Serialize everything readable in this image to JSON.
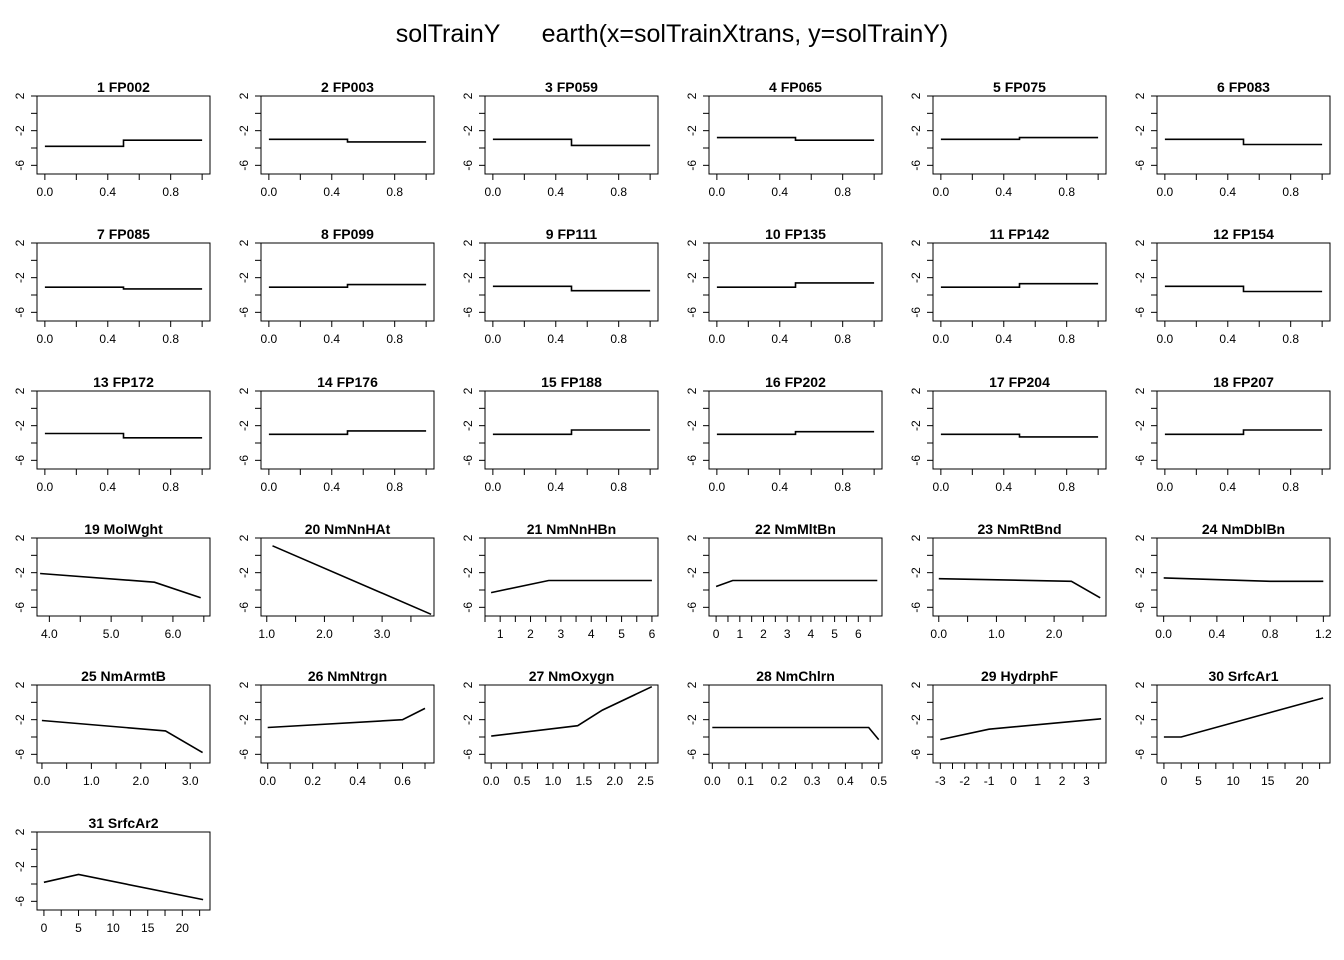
{
  "title": "solTrainY      earth(x=solTrainXtrans, y=solTrainY)",
  "chart_data": [
    {
      "type": "line",
      "title": "1  FP002",
      "ylim": [
        -7,
        2
      ],
      "yticks": [
        "2",
        "-2",
        "-6"
      ],
      "xlim": [
        -0.05,
        1.05
      ],
      "xticks": [
        "0.0",
        "0.4",
        "0.8"
      ],
      "series": [
        {
          "x": [
            0,
            0.5,
            0.5,
            1
          ],
          "y": [
            -3.8,
            -3.8,
            -3.1,
            -3.1
          ]
        }
      ]
    },
    {
      "type": "line",
      "title": "2  FP003",
      "ylim": [
        -7,
        2
      ],
      "yticks": [
        "2",
        "-2",
        "-6"
      ],
      "xlim": [
        -0.05,
        1.05
      ],
      "xticks": [
        "0.0",
        "0.4",
        "0.8"
      ],
      "series": [
        {
          "x": [
            0,
            0.5,
            0.5,
            1
          ],
          "y": [
            -3.0,
            -3.0,
            -3.3,
            -3.3
          ]
        }
      ]
    },
    {
      "type": "line",
      "title": "3  FP059",
      "ylim": [
        -7,
        2
      ],
      "yticks": [
        "2",
        "-2",
        "-6"
      ],
      "xlim": [
        -0.05,
        1.05
      ],
      "xticks": [
        "0.0",
        "0.4",
        "0.8"
      ],
      "series": [
        {
          "x": [
            0,
            0.5,
            0.5,
            1
          ],
          "y": [
            -3.0,
            -3.0,
            -3.7,
            -3.7
          ]
        }
      ]
    },
    {
      "type": "line",
      "title": "4  FP065",
      "ylim": [
        -7,
        2
      ],
      "yticks": [
        "2",
        "-2",
        "-6"
      ],
      "xlim": [
        -0.05,
        1.05
      ],
      "xticks": [
        "0.0",
        "0.4",
        "0.8"
      ],
      "series": [
        {
          "x": [
            0,
            0.5,
            0.5,
            1
          ],
          "y": [
            -2.8,
            -2.8,
            -3.1,
            -3.1
          ]
        }
      ]
    },
    {
      "type": "line",
      "title": "5  FP075",
      "ylim": [
        -7,
        2
      ],
      "yticks": [
        "2",
        "-2",
        "-6"
      ],
      "xlim": [
        -0.05,
        1.05
      ],
      "xticks": [
        "0.0",
        "0.4",
        "0.8"
      ],
      "series": [
        {
          "x": [
            0,
            0.5,
            0.5,
            1
          ],
          "y": [
            -3.0,
            -3.0,
            -2.8,
            -2.8
          ]
        }
      ]
    },
    {
      "type": "line",
      "title": "6  FP083",
      "ylim": [
        -7,
        2
      ],
      "yticks": [
        "2",
        "-2",
        "-6"
      ],
      "xlim": [
        -0.05,
        1.05
      ],
      "xticks": [
        "0.0",
        "0.4",
        "0.8"
      ],
      "series": [
        {
          "x": [
            0,
            0.5,
            0.5,
            1
          ],
          "y": [
            -3.0,
            -3.0,
            -3.6,
            -3.6
          ]
        }
      ]
    },
    {
      "type": "line",
      "title": "7  FP085",
      "ylim": [
        -7,
        2
      ],
      "yticks": [
        "2",
        "-2",
        "-6"
      ],
      "xlim": [
        -0.05,
        1.05
      ],
      "xticks": [
        "0.0",
        "0.4",
        "0.8"
      ],
      "series": [
        {
          "x": [
            0,
            0.5,
            0.5,
            1
          ],
          "y": [
            -3.1,
            -3.1,
            -3.3,
            -3.3
          ]
        }
      ]
    },
    {
      "type": "line",
      "title": "8  FP099",
      "ylim": [
        -7,
        2
      ],
      "yticks": [
        "2",
        "-2",
        "-6"
      ],
      "xlim": [
        -0.05,
        1.05
      ],
      "xticks": [
        "0.0",
        "0.4",
        "0.8"
      ],
      "series": [
        {
          "x": [
            0,
            0.5,
            0.5,
            1
          ],
          "y": [
            -3.1,
            -3.1,
            -2.8,
            -2.8
          ]
        }
      ]
    },
    {
      "type": "line",
      "title": "9  FP111",
      "ylim": [
        -7,
        2
      ],
      "yticks": [
        "2",
        "-2",
        "-6"
      ],
      "xlim": [
        -0.05,
        1.05
      ],
      "xticks": [
        "0.0",
        "0.4",
        "0.8"
      ],
      "series": [
        {
          "x": [
            0,
            0.5,
            0.5,
            1
          ],
          "y": [
            -3.0,
            -3.0,
            -3.5,
            -3.5
          ]
        }
      ]
    },
    {
      "type": "line",
      "title": "10  FP135",
      "ylim": [
        -7,
        2
      ],
      "yticks": [
        "2",
        "-2",
        "-6"
      ],
      "xlim": [
        -0.05,
        1.05
      ],
      "xticks": [
        "0.0",
        "0.4",
        "0.8"
      ],
      "series": [
        {
          "x": [
            0,
            0.5,
            0.5,
            1
          ],
          "y": [
            -3.1,
            -3.1,
            -2.6,
            -2.6
          ]
        }
      ]
    },
    {
      "type": "line",
      "title": "11  FP142",
      "ylim": [
        -7,
        2
      ],
      "yticks": [
        "2",
        "-2",
        "-6"
      ],
      "xlim": [
        -0.05,
        1.05
      ],
      "xticks": [
        "0.0",
        "0.4",
        "0.8"
      ],
      "series": [
        {
          "x": [
            0,
            0.5,
            0.5,
            1
          ],
          "y": [
            -3.1,
            -3.1,
            -2.7,
            -2.7
          ]
        }
      ]
    },
    {
      "type": "line",
      "title": "12  FP154",
      "ylim": [
        -7,
        2
      ],
      "yticks": [
        "2",
        "-2",
        "-6"
      ],
      "xlim": [
        -0.05,
        1.05
      ],
      "xticks": [
        "0.0",
        "0.4",
        "0.8"
      ],
      "series": [
        {
          "x": [
            0,
            0.5,
            0.5,
            1
          ],
          "y": [
            -3.0,
            -3.0,
            -3.6,
            -3.6
          ]
        }
      ]
    },
    {
      "type": "line",
      "title": "13  FP172",
      "ylim": [
        -7,
        2
      ],
      "yticks": [
        "2",
        "-2",
        "-6"
      ],
      "xlim": [
        -0.05,
        1.05
      ],
      "xticks": [
        "0.0",
        "0.4",
        "0.8"
      ],
      "series": [
        {
          "x": [
            0,
            0.5,
            0.5,
            1
          ],
          "y": [
            -2.9,
            -2.9,
            -3.4,
            -3.4
          ]
        }
      ]
    },
    {
      "type": "line",
      "title": "14  FP176",
      "ylim": [
        -7,
        2
      ],
      "yticks": [
        "2",
        "-2",
        "-6"
      ],
      "xlim": [
        -0.05,
        1.05
      ],
      "xticks": [
        "0.0",
        "0.4",
        "0.8"
      ],
      "series": [
        {
          "x": [
            0,
            0.5,
            0.5,
            1
          ],
          "y": [
            -3.0,
            -3.0,
            -2.6,
            -2.6
          ]
        }
      ]
    },
    {
      "type": "line",
      "title": "15  FP188",
      "ylim": [
        -7,
        2
      ],
      "yticks": [
        "2",
        "-2",
        "-6"
      ],
      "xlim": [
        -0.05,
        1.05
      ],
      "xticks": [
        "0.0",
        "0.4",
        "0.8"
      ],
      "series": [
        {
          "x": [
            0,
            0.5,
            0.5,
            1
          ],
          "y": [
            -3.0,
            -3.0,
            -2.5,
            -2.5
          ]
        }
      ]
    },
    {
      "type": "line",
      "title": "16  FP202",
      "ylim": [
        -7,
        2
      ],
      "yticks": [
        "2",
        "-2",
        "-6"
      ],
      "xlim": [
        -0.05,
        1.05
      ],
      "xticks": [
        "0.0",
        "0.4",
        "0.8"
      ],
      "series": [
        {
          "x": [
            0,
            0.5,
            0.5,
            1
          ],
          "y": [
            -3.0,
            -3.0,
            -2.7,
            -2.7
          ]
        }
      ]
    },
    {
      "type": "line",
      "title": "17  FP204",
      "ylim": [
        -7,
        2
      ],
      "yticks": [
        "2",
        "-2",
        "-6"
      ],
      "xlim": [
        -0.05,
        1.05
      ],
      "xticks": [
        "0.0",
        "0.4",
        "0.8"
      ],
      "series": [
        {
          "x": [
            0,
            0.5,
            0.5,
            1
          ],
          "y": [
            -3.0,
            -3.0,
            -3.3,
            -3.3
          ]
        }
      ]
    },
    {
      "type": "line",
      "title": "18  FP207",
      "ylim": [
        -7,
        2
      ],
      "yticks": [
        "2",
        "-2",
        "-6"
      ],
      "xlim": [
        -0.05,
        1.05
      ],
      "xticks": [
        "0.0",
        "0.4",
        "0.8"
      ],
      "series": [
        {
          "x": [
            0,
            0.5,
            0.5,
            1
          ],
          "y": [
            -3.0,
            -3.0,
            -2.5,
            -2.5
          ]
        }
      ]
    },
    {
      "type": "line",
      "title": "19  MolWght",
      "ylim": [
        -7,
        2
      ],
      "yticks": [
        "2",
        "-2",
        "-6"
      ],
      "xlim": [
        3.8,
        6.6
      ],
      "xticks": [
        "4.0",
        "5.0",
        "6.0"
      ],
      "series": [
        {
          "x": [
            3.85,
            5.7,
            6.45
          ],
          "y": [
            -2.1,
            -3.1,
            -4.9
          ]
        }
      ]
    },
    {
      "type": "line",
      "title": "20  NmNnHAt",
      "ylim": [
        -7,
        2
      ],
      "yticks": [
        "2",
        "-2",
        "-6"
      ],
      "xlim": [
        0.9,
        3.9
      ],
      "xticks": [
        "1.0",
        "2.0",
        "3.0"
      ],
      "series": [
        {
          "x": [
            1.1,
            3.85
          ],
          "y": [
            1.1,
            -6.8
          ]
        }
      ]
    },
    {
      "type": "line",
      "title": "21  NmNnHBn",
      "ylim": [
        -7,
        2
      ],
      "yticks": [
        "2",
        "-2",
        "-6"
      ],
      "xlim": [
        0.5,
        6.2
      ],
      "xticks": [
        "1",
        "2",
        "3",
        "4",
        "5",
        "6"
      ],
      "series": [
        {
          "x": [
            0.7,
            2.6,
            6
          ],
          "y": [
            -4.3,
            -2.9,
            -2.9
          ]
        }
      ]
    },
    {
      "type": "line",
      "title": "22  NmMltBn",
      "ylim": [
        -7,
        2
      ],
      "yticks": [
        "2",
        "-2",
        "-6"
      ],
      "xlim": [
        -0.3,
        7
      ],
      "xticks": [
        "0",
        "1",
        "2",
        "3",
        "4",
        "5",
        "6"
      ],
      "series": [
        {
          "x": [
            0,
            0.7,
            6.8
          ],
          "y": [
            -3.6,
            -2.9,
            -2.9
          ]
        }
      ]
    },
    {
      "type": "line",
      "title": "23  NmRtBnd",
      "ylim": [
        -7,
        2
      ],
      "yticks": [
        "2",
        "-2",
        "-6"
      ],
      "xlim": [
        -0.1,
        2.9
      ],
      "xticks": [
        "0.0",
        "1.0",
        "2.0"
      ],
      "series": [
        {
          "x": [
            0,
            2.3,
            2.8
          ],
          "y": [
            -2.7,
            -3.0,
            -4.9
          ]
        }
      ]
    },
    {
      "type": "line",
      "title": "24  NmDblBn",
      "ylim": [
        -7,
        2
      ],
      "yticks": [
        "2",
        "-2",
        "-6"
      ],
      "xlim": [
        -0.05,
        1.25
      ],
      "xticks": [
        "0.0",
        "0.4",
        "0.8",
        "1.2"
      ],
      "series": [
        {
          "x": [
            0,
            0.8,
            1.2
          ],
          "y": [
            -2.6,
            -3.0,
            -3.0
          ]
        }
      ]
    },
    {
      "type": "line",
      "title": "25  NmArmtB",
      "ylim": [
        -7,
        2
      ],
      "yticks": [
        "2",
        "-2",
        "-6"
      ],
      "xlim": [
        -0.1,
        3.4
      ],
      "xticks": [
        "0.0",
        "1.0",
        "2.0",
        "3.0"
      ],
      "series": [
        {
          "x": [
            0,
            2.5,
            3.25
          ],
          "y": [
            -2.1,
            -3.3,
            -5.8
          ]
        }
      ]
    },
    {
      "type": "line",
      "title": "26  NmNtrgn",
      "ylim": [
        -7,
        2
      ],
      "yticks": [
        "2",
        "-2",
        "-6"
      ],
      "xlim": [
        -0.03,
        0.74
      ],
      "xticks": [
        "0.0",
        "0.2",
        "0.4",
        "0.6"
      ],
      "series": [
        {
          "x": [
            0,
            0.6,
            0.7
          ],
          "y": [
            -2.9,
            -2.0,
            -0.7
          ]
        }
      ]
    },
    {
      "type": "line",
      "title": "27  NmOxygn",
      "ylim": [
        -7,
        2
      ],
      "yticks": [
        "2",
        "-2",
        "-6"
      ],
      "xlim": [
        -0.1,
        2.7
      ],
      "xticks": [
        "0.0",
        "0.5",
        "1.0",
        "1.5",
        "2.0",
        "2.5"
      ],
      "series": [
        {
          "x": [
            0,
            1.4,
            1.8,
            2.6
          ],
          "y": [
            -3.9,
            -2.7,
            -0.9,
            1.8
          ]
        }
      ]
    },
    {
      "type": "line",
      "title": "28  NmChlrn",
      "ylim": [
        -7,
        2
      ],
      "yticks": [
        "2",
        "-2",
        "-6"
      ],
      "xlim": [
        -0.01,
        0.51
      ],
      "xticks": [
        "0.0",
        "0.1",
        "0.2",
        "0.3",
        "0.4",
        "0.5"
      ],
      "series": [
        {
          "x": [
            0,
            0.47,
            0.5
          ],
          "y": [
            -2.9,
            -2.9,
            -4.3
          ]
        }
      ]
    },
    {
      "type": "line",
      "title": "29  HydrphF",
      "ylim": [
        -7,
        2
      ],
      "yticks": [
        "2",
        "-2",
        "-6"
      ],
      "xlim": [
        -3.3,
        3.8
      ],
      "xticks": [
        "-3",
        "-2",
        "-1",
        "0",
        "1",
        "2",
        "3"
      ],
      "series": [
        {
          "x": [
            -3,
            -1,
            3.6
          ],
          "y": [
            -4.3,
            -3.1,
            -1.9
          ]
        }
      ]
    },
    {
      "type": "line",
      "title": "30  SrfcAr1",
      "ylim": [
        -7,
        2
      ],
      "yticks": [
        "2",
        "-2",
        "-6"
      ],
      "xlim": [
        -1,
        24
      ],
      "xticks": [
        "0",
        "5",
        "10",
        "15",
        "20"
      ],
      "series": [
        {
          "x": [
            0,
            2.5,
            23
          ],
          "y": [
            -4.0,
            -4.0,
            0.5
          ]
        }
      ]
    },
    {
      "type": "line",
      "title": "31  SrfcAr2",
      "ylim": [
        -7,
        2
      ],
      "yticks": [
        "2",
        "-2",
        "-6"
      ],
      "xlim": [
        -1,
        24
      ],
      "xticks": [
        "0",
        "5",
        "10",
        "15",
        "20"
      ],
      "series": [
        {
          "x": [
            0,
            5,
            23
          ],
          "y": [
            -3.8,
            -2.9,
            -5.8
          ]
        }
      ]
    }
  ]
}
